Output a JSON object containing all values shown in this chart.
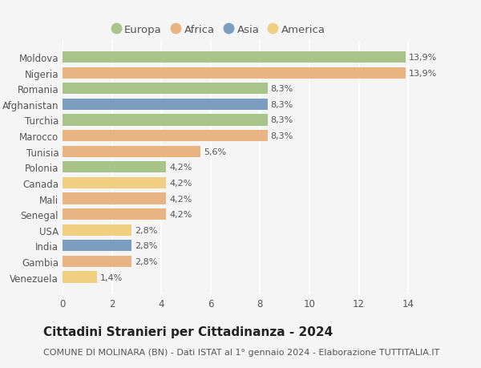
{
  "countries": [
    "Moldova",
    "Nigeria",
    "Romania",
    "Afghanistan",
    "Turchia",
    "Marocco",
    "Tunisia",
    "Polonia",
    "Canada",
    "Mali",
    "Senegal",
    "USA",
    "India",
    "Gambia",
    "Venezuela"
  ],
  "values": [
    13.9,
    13.9,
    8.3,
    8.3,
    8.3,
    8.3,
    5.6,
    4.2,
    4.2,
    4.2,
    4.2,
    2.8,
    2.8,
    2.8,
    1.4
  ],
  "labels": [
    "13,9%",
    "13,9%",
    "8,3%",
    "8,3%",
    "8,3%",
    "8,3%",
    "5,6%",
    "4,2%",
    "4,2%",
    "4,2%",
    "4,2%",
    "2,8%",
    "2,8%",
    "2,8%",
    "1,4%"
  ],
  "continents": [
    "Europa",
    "Africa",
    "Europa",
    "Asia",
    "Europa",
    "Africa",
    "Africa",
    "Europa",
    "America",
    "Africa",
    "Africa",
    "America",
    "Asia",
    "Africa",
    "America"
  ],
  "colors": {
    "Europa": "#a8c48a",
    "Africa": "#e8b482",
    "Asia": "#7b9dc0",
    "America": "#f0d080"
  },
  "xlim": [
    0,
    15.0
  ],
  "xticks": [
    0,
    2,
    4,
    6,
    8,
    10,
    12,
    14
  ],
  "title": "Cittadini Stranieri per Cittadinanza - 2024",
  "subtitle": "COMUNE DI MOLINARA (BN) - Dati ISTAT al 1° gennaio 2024 - Elaborazione TUTTITALIA.IT",
  "background_color": "#f5f5f5",
  "bar_height": 0.72,
  "grid_color": "#ffffff",
  "title_fontsize": 11,
  "subtitle_fontsize": 8,
  "label_fontsize": 8,
  "tick_fontsize": 8.5,
  "legend_fontsize": 9.5
}
